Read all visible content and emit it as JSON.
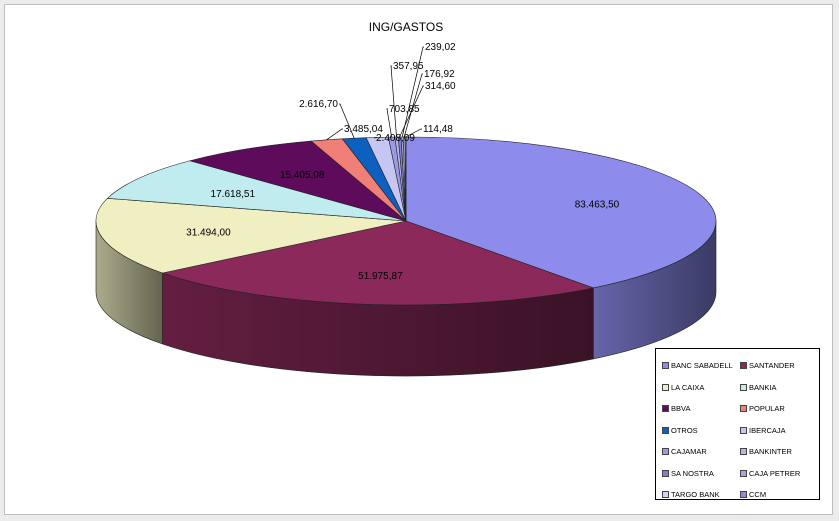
{
  "chart_data": {
    "type": "pie",
    "title": "ING/GASTOS",
    "slices": [
      {
        "name": "BANC SABADELL",
        "value": 83463.5,
        "label": "83.463,50",
        "color": "#8d8ced"
      },
      {
        "name": "SANTANDER",
        "value": 51975.87,
        "label": "51.975,87",
        "color": "#8b2a5a"
      },
      {
        "name": "LA CAIXA",
        "value": 31494.0,
        "label": "31.494,00",
        "color": "#efefc2"
      },
      {
        "name": "BANKIA",
        "value": 17618.51,
        "label": "17.618,51",
        "color": "#c0ecef"
      },
      {
        "name": "BBVA",
        "value": 15405.08,
        "label": "15.405,08",
        "color": "#5f0b5c"
      },
      {
        "name": "POPULAR",
        "value": 3485.04,
        "label": "3.485,04",
        "color": "#f07f78"
      },
      {
        "name": "OTROS",
        "value": 2616.7,
        "label": "2.616,70",
        "color": "#0d5fc0"
      },
      {
        "name": "IBERCAJA",
        "value": 2408.09,
        "label": "2.408,09",
        "color": "#c6c6f2"
      },
      {
        "name": "CAJAMAR",
        "value": 703.85,
        "label": "703,85",
        "color": "#9a9ae8"
      },
      {
        "name": "BANKINTER",
        "value": 357.95,
        "label": "357,95",
        "color": "#b5b5e8"
      },
      {
        "name": "SA NOSTRA",
        "value": 314.6,
        "label": "314,60",
        "color": "#7f7fd6"
      },
      {
        "name": "CAJA PETRER",
        "value": 239.02,
        "label": "239,02",
        "color": "#a7a7e0"
      },
      {
        "name": "TARGO BANK",
        "value": 176.92,
        "label": "176,92",
        "color": "#d3d3f5"
      },
      {
        "name": "CCM",
        "value": 114.48,
        "label": "114,48",
        "color": "#8e8ed8"
      }
    ],
    "legend_position": "bottom-right"
  }
}
